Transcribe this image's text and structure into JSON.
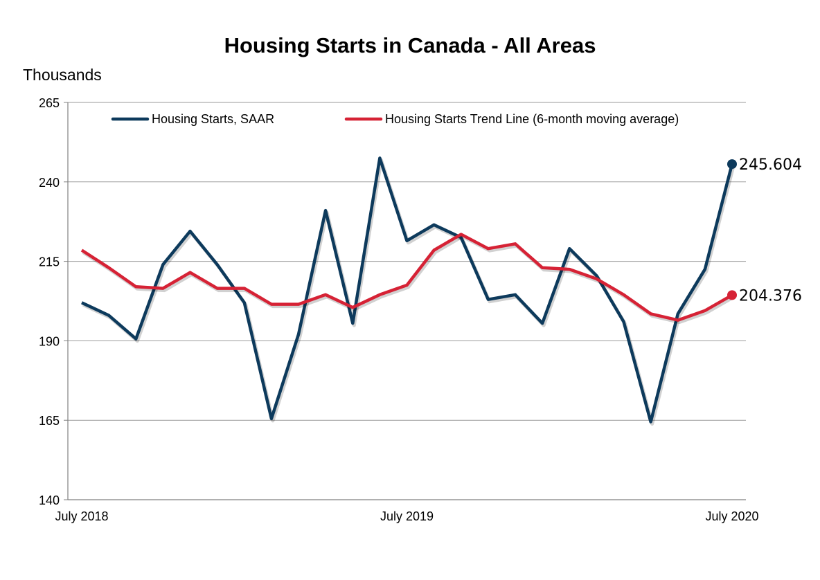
{
  "chart_data": {
    "type": "line",
    "title": "Housing Starts in Canada - All Areas",
    "ylabel": "Thousands",
    "xlabel": "",
    "ylim": [
      140,
      265
    ],
    "yticks": [
      140,
      165,
      190,
      215,
      240,
      265
    ],
    "grid": true,
    "legend_position": "top",
    "x": [
      "2018-07",
      "2018-08",
      "2018-09",
      "2018-10",
      "2018-11",
      "2018-12",
      "2019-01",
      "2019-02",
      "2019-03",
      "2019-04",
      "2019-05",
      "2019-06",
      "2019-07",
      "2019-08",
      "2019-09",
      "2019-10",
      "2019-11",
      "2019-12",
      "2020-01",
      "2020-02",
      "2020-03",
      "2020-04",
      "2020-05",
      "2020-06",
      "2020-07"
    ],
    "xtick_labels": [
      {
        "x": "2018-07",
        "label": "July 2018"
      },
      {
        "x": "2019-07",
        "label": "July 2019"
      },
      {
        "x": "2020-07",
        "label": "July 2020"
      }
    ],
    "series": [
      {
        "name": "Housing Starts, SAAR",
        "color": "#0d3a5c",
        "values": [
          202,
          198,
          190.6,
          214,
          224.5,
          214,
          202,
          165.5,
          192,
          231,
          195.5,
          247.5,
          221.5,
          226.5,
          222.5,
          203,
          204.5,
          195.5,
          219,
          210.5,
          196,
          164.5,
          198.5,
          212.5,
          245.604
        ],
        "end_label": "245.604"
      },
      {
        "name": "Housing Starts Trend Line (6-month moving average)",
        "color": "#d62235",
        "values": [
          218.5,
          213,
          207,
          206.5,
          211.5,
          206.5,
          206.5,
          201.5,
          201.5,
          204.5,
          200.5,
          204.5,
          207.5,
          218.5,
          223.5,
          219,
          220.5,
          213,
          212.5,
          209.5,
          204.5,
          198.5,
          196.5,
          199.5,
          204.376
        ],
        "end_label": "204.376"
      }
    ]
  }
}
